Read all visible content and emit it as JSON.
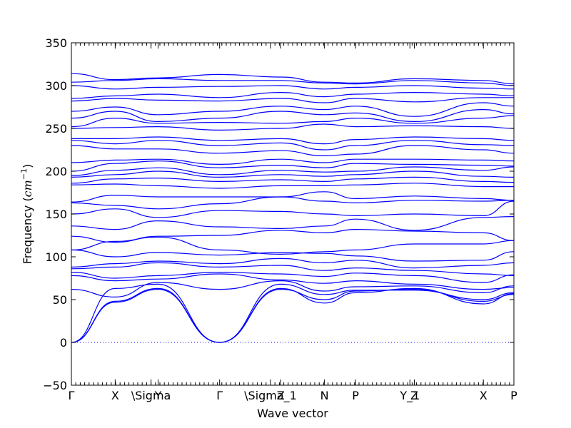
{
  "chart_data": {
    "type": "line",
    "xlabel": "Wave vector",
    "ylabel": "Frequency ($cm^{-1}$)",
    "ylabel_text": "Frequency (",
    "ylabel_unit": "cm",
    "ylabel_exp": "−1",
    "ylabel_close": ")",
    "ylim": [
      -50,
      350
    ],
    "yticks": [
      -50,
      0,
      50,
      100,
      150,
      200,
      250,
      300,
      350
    ],
    "line_color": "#0000ff",
    "zero_line": true,
    "grid": false,
    "x_range": [
      0,
      1
    ],
    "high_symmetry_points": [
      {
        "label": "Γ",
        "x": 0.0
      },
      {
        "label": "X",
        "x": 0.099
      },
      {
        "label": "\\Sigma",
        "x": 0.18
      },
      {
        "label": "Y",
        "x": 0.196
      },
      {
        "label": "Γ",
        "x": 0.335
      },
      {
        "label": "\\Sigma_1",
        "x": 0.45
      },
      {
        "label": "Z",
        "x": 0.473
      },
      {
        "label": "N",
        "x": 0.572
      },
      {
        "label": "P",
        "x": 0.642
      },
      {
        "label": "Y_1",
        "x": 0.765
      },
      {
        "label": "Z",
        "x": 0.775
      },
      {
        "label": "X",
        "x": 0.931
      },
      {
        "label": "P",
        "x": 1.0
      }
    ],
    "band_keypoints": [
      0.0,
      0.099,
      0.196,
      0.335,
      0.473,
      0.572,
      0.642,
      0.775,
      0.931,
      1.0
    ],
    "series": [
      {
        "values": [
          0,
          47,
          62,
          0,
          62,
          50,
          60,
          62,
          48,
          56
        ]
      },
      {
        "values": [
          0,
          48,
          63,
          0,
          63,
          46,
          58,
          63,
          45,
          57
        ]
      },
      {
        "values": [
          0,
          63,
          68,
          0,
          68,
          56,
          61,
          61,
          50,
          58
        ]
      },
      {
        "values": [
          62,
          53,
          70,
          62,
          72,
          60,
          65,
          66,
          58,
          66
        ]
      },
      {
        "values": [
          78,
          72,
          74,
          80,
          73,
          69,
          72,
          68,
          62,
          64
        ]
      },
      {
        "values": [
          82,
          75,
          78,
          82,
          80,
          77,
          81,
          78,
          70,
          79
        ]
      },
      {
        "values": [
          86,
          88,
          93,
          88,
          90,
          84,
          87,
          84,
          80,
          78
        ]
      },
      {
        "values": [
          88,
          92,
          95,
          92,
          98,
          93,
          96,
          87,
          90,
          93
        ]
      },
      {
        "values": [
          108,
          100,
          105,
          102,
          105,
          104,
          101,
          95,
          96,
          106
        ]
      },
      {
        "values": [
          108,
          118,
          123,
          108,
          103,
          106,
          108,
          115,
          115,
          119
        ]
      },
      {
        "values": [
          124,
          117,
          124,
          125,
          131,
          128,
          132,
          130,
          128,
          119
        ]
      },
      {
        "values": [
          136,
          132,
          142,
          135,
          133,
          136,
          144,
          131,
          146,
          147
        ]
      },
      {
        "values": [
          150,
          156,
          146,
          154,
          153,
          150,
          148,
          150,
          148,
          165
        ]
      },
      {
        "values": [
          163,
          160,
          156,
          162,
          170,
          165,
          163,
          166,
          165,
          166
        ]
      },
      {
        "values": [
          164,
          172,
          170,
          170,
          170,
          176,
          168,
          171,
          168,
          166
        ]
      },
      {
        "values": [
          184,
          185,
          183,
          180,
          183,
          183,
          184,
          186,
          182,
          182
        ]
      },
      {
        "values": [
          186,
          191,
          192,
          188,
          190,
          188,
          191,
          193,
          188,
          187
        ]
      },
      {
        "values": [
          193,
          196,
          200,
          193,
          196,
          194,
          196,
          200,
          194,
          193
        ]
      },
      {
        "values": [
          195,
          201,
          204,
          196,
          201,
          199,
          200,
          205,
          201,
          205
        ]
      },
      {
        "values": [
          200,
          209,
          212,
          204,
          207,
          204,
          209,
          208,
          207,
          206
        ]
      },
      {
        "values": [
          210,
          213,
          214,
          208,
          214,
          210,
          214,
          214,
          213,
          212
        ]
      },
      {
        "values": [
          230,
          226,
          226,
          221,
          224,
          218,
          220,
          230,
          225,
          221
        ]
      },
      {
        "values": [
          236,
          232,
          236,
          230,
          233,
          225,
          230,
          236,
          231,
          230
        ]
      },
      {
        "values": [
          238,
          238,
          240,
          236,
          238,
          232,
          237,
          240,
          238,
          236
        ]
      },
      {
        "values": [
          250,
          251,
          252,
          248,
          250,
          255,
          252,
          253,
          252,
          250
        ]
      },
      {
        "values": [
          252,
          262,
          256,
          257,
          256,
          258,
          262,
          256,
          262,
          265
        ]
      },
      {
        "values": [
          262,
          270,
          258,
          262,
          270,
          266,
          268,
          258,
          272,
          267
        ]
      },
      {
        "values": [
          270,
          275,
          266,
          270,
          276,
          272,
          276,
          264,
          280,
          276
        ]
      },
      {
        "values": [
          282,
          285,
          283,
          282,
          285,
          280,
          285,
          281,
          286,
          286
        ]
      },
      {
        "values": [
          285,
          288,
          290,
          286,
          292,
          287,
          290,
          292,
          290,
          288
        ]
      },
      {
        "values": [
          300,
          296,
          298,
          299,
          300,
          296,
          298,
          300,
          297,
          296
        ]
      },
      {
        "values": [
          304,
          306,
          308,
          306,
          306,
          303,
          302,
          306,
          303,
          300
        ]
      },
      {
        "values": [
          314,
          307,
          309,
          313,
          310,
          304,
          303,
          308,
          306,
          302
        ]
      }
    ]
  }
}
